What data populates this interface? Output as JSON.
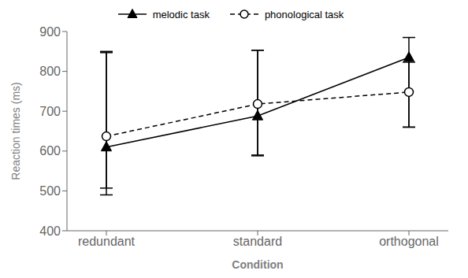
{
  "chart_data": {
    "type": "line",
    "categories": [
      "redundant",
      "standard",
      "orthogonal"
    ],
    "xlabel": "Condition",
    "ylabel": "Reaction times (ms)",
    "ylim": [
      400,
      900
    ],
    "yticks": [
      400,
      500,
      600,
      700,
      800,
      900
    ],
    "grid": false,
    "legend": "top",
    "series": [
      {
        "name": "melodic task",
        "color": "black",
        "marker": "triangle",
        "line_style": "solid",
        "values": [
          610,
          688,
          835
        ],
        "yerr_low": [
          120,
          100,
          175
        ],
        "yerr_high": [
          240,
          165,
          50
        ]
      },
      {
        "name": "phonological task",
        "color": "black",
        "marker": "circle",
        "line_style": "dashed",
        "values": [
          637,
          718,
          748
        ],
        "yerr_low": [
          130,
          128,
          88
        ],
        "yerr_high": [
          210,
          135,
          75
        ]
      }
    ]
  }
}
